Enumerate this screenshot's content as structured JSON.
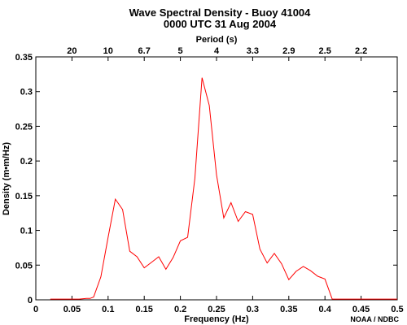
{
  "chart_data": {
    "type": "line",
    "title": "Wave Spectral Density - Buoy 41004",
    "subtitle": "0000 UTC  31 Aug 2004",
    "xlabel": "Frequency (Hz)",
    "ylabel": "Density (m•m/Hz)",
    "top_axis_label": "Period (s)",
    "credit": "NOAA / NDBC",
    "xlim": [
      0,
      0.5
    ],
    "ylim": [
      0,
      0.35
    ],
    "grid": false,
    "series_color": "#ff0000",
    "x_ticks": [
      {
        "value": 0,
        "label": "0"
      },
      {
        "value": 0.05,
        "label": "0.05"
      },
      {
        "value": 0.1,
        "label": "0.1"
      },
      {
        "value": 0.15,
        "label": "0.15"
      },
      {
        "value": 0.2,
        "label": "0.2"
      },
      {
        "value": 0.25,
        "label": "0.25"
      },
      {
        "value": 0.3,
        "label": "0.3"
      },
      {
        "value": 0.35,
        "label": "0.35"
      },
      {
        "value": 0.4,
        "label": "0.4"
      },
      {
        "value": 0.45,
        "label": "0.45"
      },
      {
        "value": 0.5,
        "label": "0.5"
      }
    ],
    "y_ticks": [
      {
        "value": 0,
        "label": "0"
      },
      {
        "value": 0.05,
        "label": "0.05"
      },
      {
        "value": 0.1,
        "label": "0.1"
      },
      {
        "value": 0.15,
        "label": "0.15"
      },
      {
        "value": 0.2,
        "label": "0.2"
      },
      {
        "value": 0.25,
        "label": "0.25"
      },
      {
        "value": 0.3,
        "label": "0.3"
      },
      {
        "value": 0.35,
        "label": "0.35"
      }
    ],
    "top_ticks": [
      {
        "value": 0.05,
        "label": "20"
      },
      {
        "value": 0.1,
        "label": "10"
      },
      {
        "value": 0.15,
        "label": "6.7"
      },
      {
        "value": 0.2,
        "label": "5"
      },
      {
        "value": 0.25,
        "label": "4"
      },
      {
        "value": 0.3,
        "label": "3.3"
      },
      {
        "value": 0.35,
        "label": "2.9"
      },
      {
        "value": 0.4,
        "label": "2.5"
      },
      {
        "value": 0.45,
        "label": "2.2"
      }
    ],
    "series": [
      {
        "x": [
          0.02,
          0.03,
          0.04,
          0.05,
          0.06,
          0.07,
          0.075,
          0.08,
          0.09,
          0.1,
          0.11,
          0.12,
          0.13,
          0.14,
          0.15,
          0.16,
          0.17,
          0.18,
          0.19,
          0.2,
          0.21,
          0.22,
          0.23,
          0.24,
          0.25,
          0.26,
          0.27,
          0.28,
          0.29,
          0.3,
          0.31,
          0.32,
          0.33,
          0.34,
          0.35,
          0.36,
          0.37,
          0.38,
          0.39,
          0.4,
          0.41,
          0.42,
          0.5
        ],
        "y": [
          0.001,
          0.001,
          0.001,
          0.001,
          0.001,
          0.002,
          0.002,
          0.004,
          0.033,
          0.09,
          0.145,
          0.13,
          0.07,
          0.062,
          0.046,
          0.054,
          0.062,
          0.044,
          0.061,
          0.085,
          0.09,
          0.175,
          0.32,
          0.28,
          0.18,
          0.118,
          0.14,
          0.113,
          0.127,
          0.123,
          0.073,
          0.053,
          0.067,
          0.052,
          0.029,
          0.041,
          0.048,
          0.042,
          0.034,
          0.03,
          0.001,
          0.001,
          0.001
        ]
      }
    ]
  }
}
